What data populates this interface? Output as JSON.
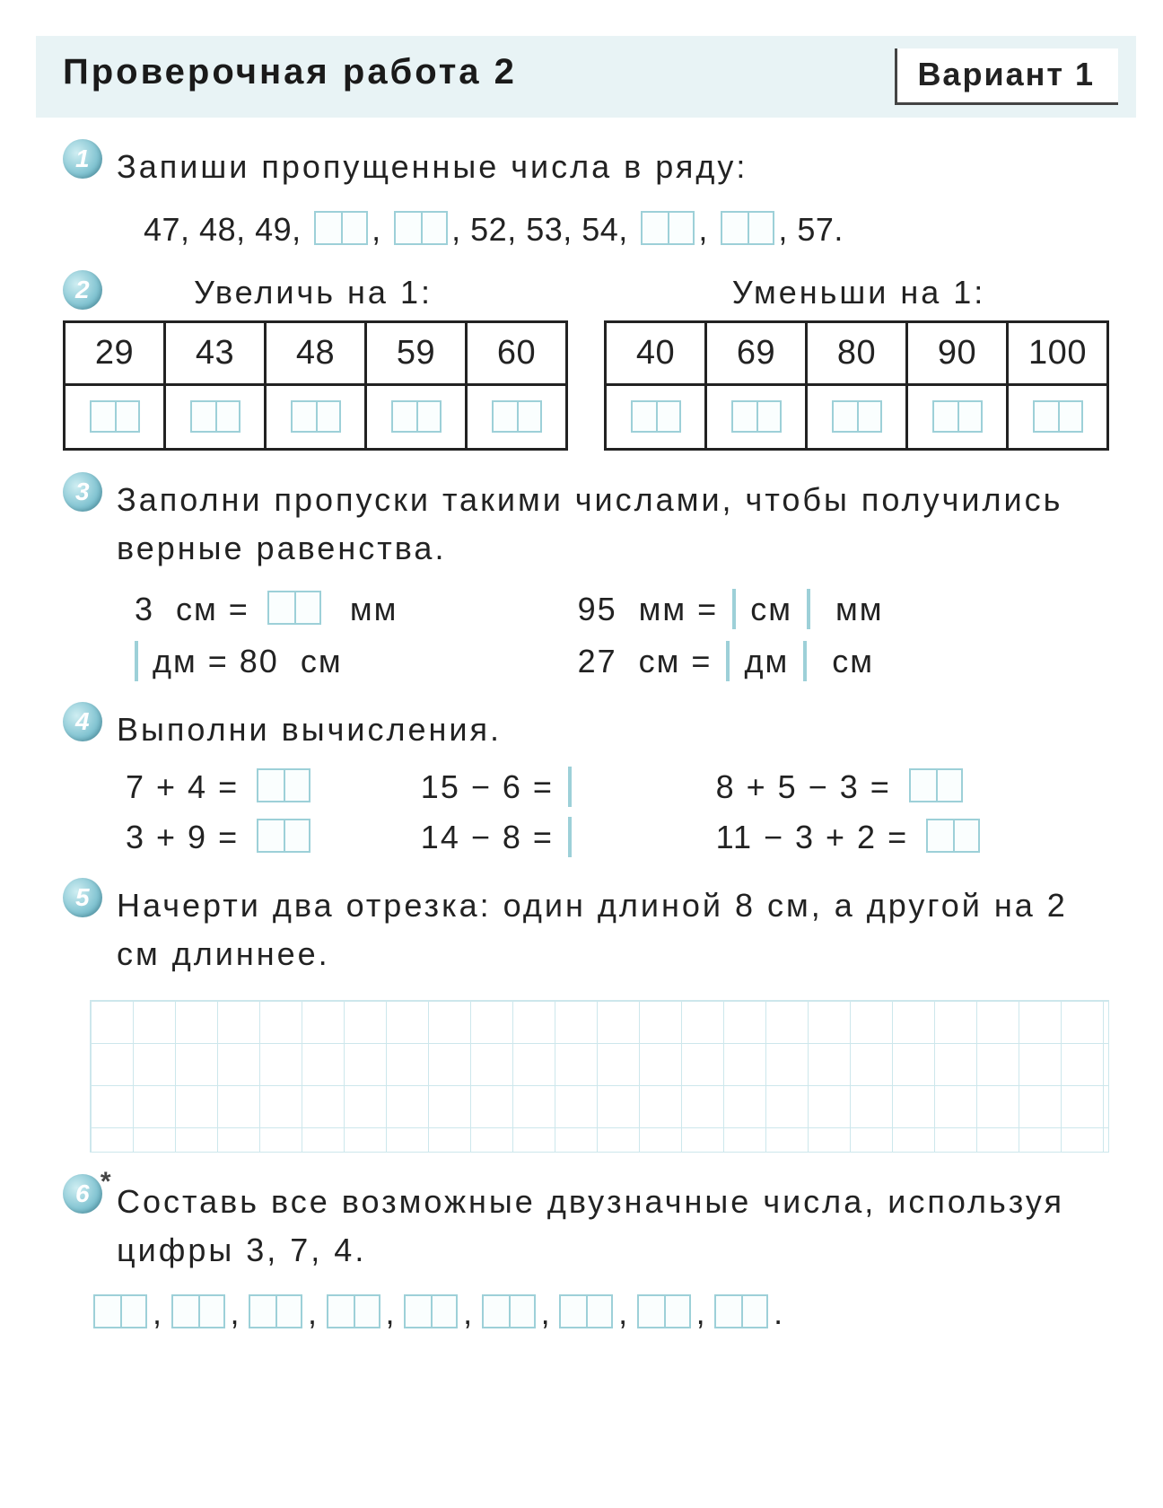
{
  "colors": {
    "header_bg": "#e8f3f5",
    "bullet_gradient": [
      "#cfeef2",
      "#88c7d4",
      "#4ca0b5"
    ],
    "box_border": "#9dd0d8",
    "table_border": "#222222",
    "grid_line": "#cde7ec",
    "text": "#222222"
  },
  "header": {
    "title": "Проверочная  работа  2",
    "variant": "Вариант  1"
  },
  "task1": {
    "num": "1",
    "text": "Запиши  пропущенные  числа  в  ряду:",
    "sequence_parts": [
      "47, 48, 49, ",
      ", ",
      ", 52, 53, 54, ",
      ", ",
      ", 57."
    ]
  },
  "task2": {
    "num": "2",
    "left": {
      "title": "Увеличь  на  1:",
      "values": [
        "29",
        "43",
        "48",
        "59",
        "60"
      ]
    },
    "right": {
      "title": "Уменьши  на  1:",
      "values": [
        "40",
        "69",
        "80",
        "90",
        "100"
      ]
    }
  },
  "task3": {
    "num": "3",
    "text": "Заполни  пропуски  такими  числами,  чтобы  получились верные  равенства.",
    "rows": [
      {
        "left": [
          "3  см = ",
          "BOX2",
          "  мм"
        ],
        "right": [
          "95  мм = ",
          "BOX1",
          " см ",
          "BOX1",
          "  мм"
        ]
      },
      {
        "left": [
          "BOX1",
          " дм = 80  см"
        ],
        "right": [
          "27  см = ",
          "BOX1",
          " дм ",
          "BOX1",
          "  см"
        ]
      }
    ]
  },
  "task4": {
    "num": "4",
    "text": "Выполни  вычисления.",
    "rows": [
      [
        "7 + 4 = ",
        "15 − 6 = ",
        "8 + 5 − 3 = "
      ],
      [
        "3 + 9 = ",
        "14 − 8 = ",
        "11 − 3 + 2 = "
      ]
    ],
    "box_sizes": [
      [
        2,
        1,
        2
      ],
      [
        2,
        1,
        2
      ]
    ]
  },
  "task5": {
    "num": "5",
    "text": "Начерти  два  отрезка:  один  длиной  8  см,  а  другой на  2  см  длиннее."
  },
  "task6": {
    "num": "6",
    "star": true,
    "text": "Составь  все  возможные  двузначные  числа,  используя цифры  3,  7,  4.",
    "blank_count": 9
  }
}
